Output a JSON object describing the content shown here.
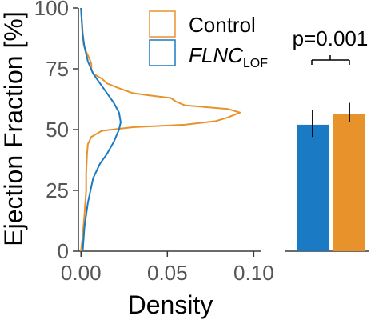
{
  "colors": {
    "control": "#E8922B",
    "flnc": "#1A7BC4",
    "axis": "#3a3a3a",
    "tick_label": "#555555",
    "text": "#000000"
  },
  "legend": {
    "control_label": "Control",
    "flnc_label_main": "FLNC",
    "flnc_label_sub": "LOF"
  },
  "significance": {
    "label": "p=0.001"
  },
  "chart_data": [
    {
      "type": "line",
      "orientation": "horizontal-density",
      "xlabel": "Density",
      "ylabel": "Ejection Fraction [%]",
      "xlim": [
        0,
        0.1
      ],
      "ylim": [
        0,
        100
      ],
      "x_ticks": [
        0.0,
        0.05,
        0.1
      ],
      "x_tick_labels": [
        "0.00",
        "0.05",
        "0.10"
      ],
      "y_ticks": [
        0,
        25,
        50,
        75,
        100
      ],
      "y_tick_labels": [
        "0",
        "25",
        "50",
        "75",
        "100"
      ],
      "legend_position": "top-right",
      "series": [
        {
          "name": "Control",
          "color": "#E8922B",
          "points": [
            [
              0.0,
              0
            ],
            [
              0.0008,
              5
            ],
            [
              0.002,
              15
            ],
            [
              0.003,
              25
            ],
            [
              0.003,
              32
            ],
            [
              0.0035,
              40
            ],
            [
              0.004,
              44
            ],
            [
              0.006,
              47
            ],
            [
              0.012,
              49.5
            ],
            [
              0.03,
              51
            ],
            [
              0.06,
              52
            ],
            [
              0.078,
              53.5
            ],
            [
              0.085,
              55
            ],
            [
              0.092,
              57
            ],
            [
              0.085,
              58.5
            ],
            [
              0.06,
              60
            ],
            [
              0.055,
              61.5
            ],
            [
              0.052,
              63
            ],
            [
              0.04,
              64
            ],
            [
              0.03,
              65
            ],
            [
              0.022,
              67
            ],
            [
              0.015,
              69
            ],
            [
              0.012,
              71
            ],
            [
              0.007,
              73
            ],
            [
              0.006,
              75
            ],
            [
              0.006,
              77
            ],
            [
              0.005,
              79
            ],
            [
              0.003,
              82
            ],
            [
              0.0015,
              85
            ],
            [
              0.001,
              90
            ],
            [
              0.0005,
              95
            ],
            [
              0.0,
              100
            ]
          ]
        },
        {
          "name": "FLNC_LOF",
          "color": "#1A7BC4",
          "points": [
            [
              0.001,
              0
            ],
            [
              0.002,
              10
            ],
            [
              0.004,
              20
            ],
            [
              0.007,
              30
            ],
            [
              0.011,
              36
            ],
            [
              0.015,
              40
            ],
            [
              0.019,
              45
            ],
            [
              0.022,
              50
            ],
            [
              0.023,
              53
            ],
            [
              0.022,
              57
            ],
            [
              0.019,
              61
            ],
            [
              0.015,
              65
            ],
            [
              0.011,
              69
            ],
            [
              0.007,
              73
            ],
            [
              0.004,
              78
            ],
            [
              0.002,
              84
            ],
            [
              0.0008,
              90
            ],
            [
              0.0,
              100
            ]
          ]
        }
      ]
    },
    {
      "type": "bar",
      "categories": [
        "FLNC_LOF",
        "Control"
      ],
      "ylim": [
        0,
        100
      ],
      "series": [
        {
          "name": "Ejection Fraction",
          "values": [
            52,
            56.5
          ],
          "error_low": [
            47,
            53
          ],
          "error_high": [
            58,
            61
          ],
          "colors": [
            "#1A7BC4",
            "#E8922B"
          ]
        }
      ]
    }
  ]
}
